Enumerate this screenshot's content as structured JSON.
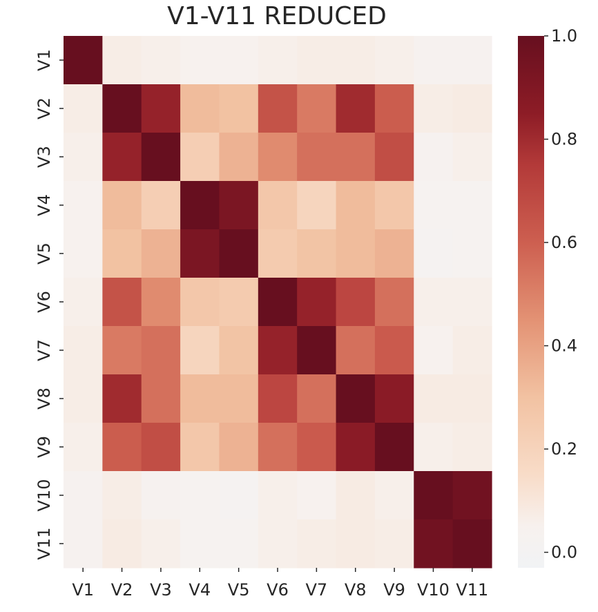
{
  "chart_data": {
    "type": "heatmap",
    "title": "V1-V11 REDUCED",
    "xlabel": "",
    "ylabel": "",
    "x_labels": [
      "V1",
      "V2",
      "V3",
      "V4",
      "V5",
      "V6",
      "V7",
      "V8",
      "V9",
      "V10",
      "V11"
    ],
    "y_labels": [
      "V1",
      "V2",
      "V3",
      "V4",
      "V5",
      "V6",
      "V7",
      "V8",
      "V9",
      "V10",
      "V11"
    ],
    "values": [
      [
        1.0,
        0.07,
        0.06,
        0.05,
        0.05,
        0.06,
        0.07,
        0.07,
        0.06,
        0.04,
        0.04
      ],
      [
        0.07,
        1.0,
        0.83,
        0.32,
        0.3,
        0.65,
        0.52,
        0.8,
        0.61,
        0.07,
        0.08
      ],
      [
        0.06,
        0.83,
        1.0,
        0.23,
        0.35,
        0.47,
        0.55,
        0.55,
        0.67,
        0.04,
        0.06
      ],
      [
        0.05,
        0.32,
        0.23,
        1.0,
        0.92,
        0.27,
        0.19,
        0.32,
        0.27,
        0.03,
        0.03
      ],
      [
        0.05,
        0.3,
        0.35,
        0.92,
        1.0,
        0.25,
        0.29,
        0.32,
        0.35,
        0.02,
        0.03
      ],
      [
        0.06,
        0.65,
        0.47,
        0.27,
        0.25,
        1.0,
        0.83,
        0.7,
        0.55,
        0.06,
        0.06
      ],
      [
        0.07,
        0.52,
        0.55,
        0.19,
        0.29,
        0.83,
        1.0,
        0.55,
        0.62,
        0.05,
        0.07
      ],
      [
        0.07,
        0.8,
        0.55,
        0.32,
        0.32,
        0.7,
        0.55,
        1.0,
        0.86,
        0.08,
        0.08
      ],
      [
        0.06,
        0.61,
        0.67,
        0.27,
        0.35,
        0.55,
        0.62,
        0.86,
        1.0,
        0.06,
        0.07
      ],
      [
        0.04,
        0.07,
        0.04,
        0.03,
        0.02,
        0.06,
        0.05,
        0.08,
        0.06,
        1.0,
        0.96
      ],
      [
        0.04,
        0.08,
        0.06,
        0.03,
        0.03,
        0.06,
        0.07,
        0.08,
        0.07,
        0.96,
        1.0
      ]
    ],
    "colorbar": {
      "min": -0.03,
      "max": 1.0,
      "ticks": [
        0.0,
        0.2,
        0.4,
        0.6,
        0.8,
        1.0
      ],
      "tick_labels": [
        "0.0",
        "0.2",
        "0.4",
        "0.6",
        "0.8",
        "1.0"
      ]
    },
    "colormap": "RdBu_r",
    "colormap_stops": [
      {
        "v": -0.03,
        "color": "#f1f3f5"
      },
      {
        "v": 0.05,
        "color": "#f7f1ee"
      },
      {
        "v": 0.15,
        "color": "#f8dcc8"
      },
      {
        "v": 0.3,
        "color": "#f2c2a2"
      },
      {
        "v": 0.45,
        "color": "#e39274"
      },
      {
        "v": 0.6,
        "color": "#cd5f50"
      },
      {
        "v": 0.75,
        "color": "#b33a39"
      },
      {
        "v": 0.85,
        "color": "#8d1c26"
      },
      {
        "v": 1.0,
        "color": "#670f1f"
      }
    ],
    "grid": false
  }
}
